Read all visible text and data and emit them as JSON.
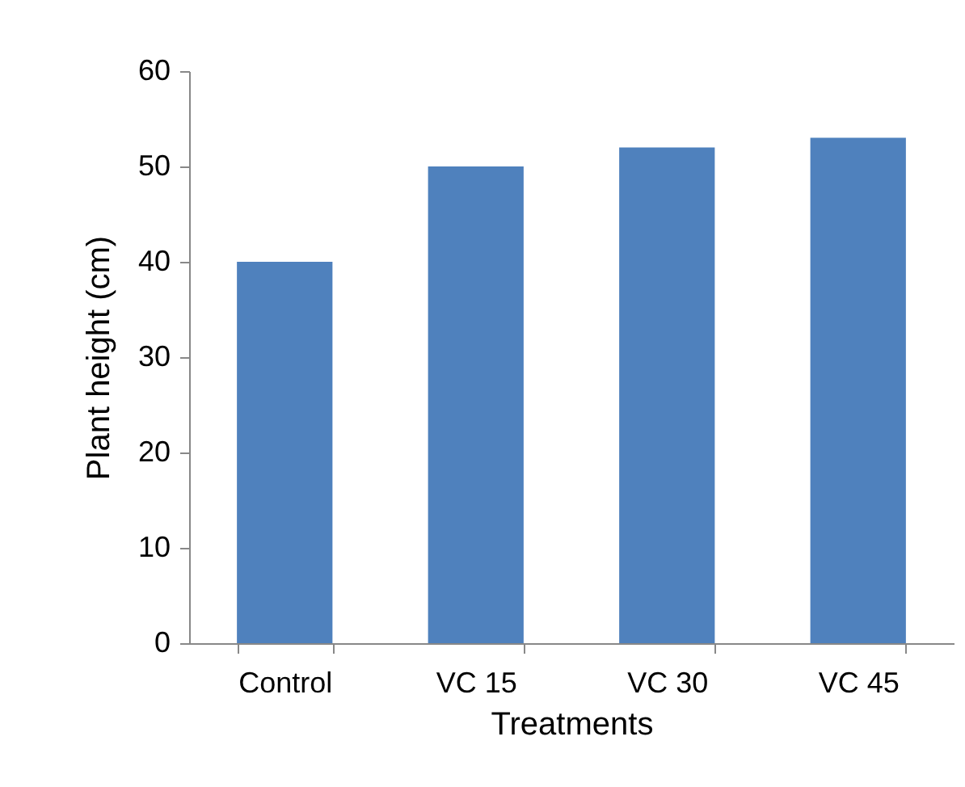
{
  "chart_data": {
    "type": "bar",
    "xlabel": "Treatments",
    "ylabel": "Plant height (cm)",
    "categories": [
      "Control",
      "VC 15",
      "VC 30",
      "VC 45"
    ],
    "values": [
      40,
      50,
      52,
      53
    ],
    "color": "#4f81bd",
    "ylim": [
      0,
      60
    ],
    "yticks": [
      0,
      10,
      20,
      30,
      40,
      50,
      60
    ],
    "grid": false
  }
}
